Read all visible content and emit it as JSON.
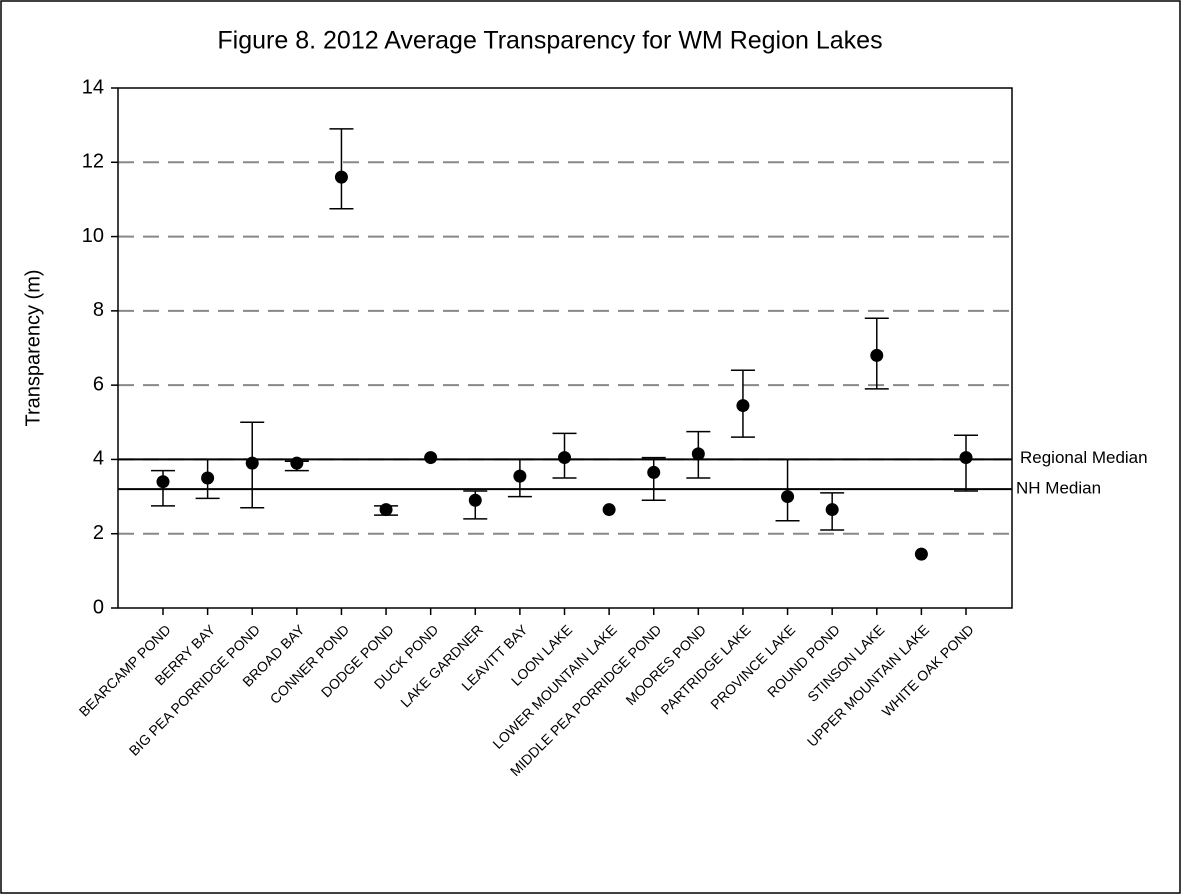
{
  "chart_data": {
    "type": "errorbar",
    "title": "Figure 8. 2012 Average Transparency for WM Region Lakes",
    "y_label": "Transparency (m)",
    "categories": [
      "BEARCAMP POND",
      "BERRY BAY",
      "BIG PEA PORRIDGE POND",
      "BROAD BAY",
      "CONNER POND",
      "DODGE POND",
      "DUCK POND",
      "LAKE GARDNER",
      "LEAVITT BAY",
      "LOON LAKE",
      "LOWER MOUNTAIN LAKE",
      "MIDDLE PEA PORRIDGE POND",
      "MOORES POND",
      "PARTRIDGE LAKE",
      "PROVINCE LAKE",
      "ROUND POND",
      "STINSON LAKE",
      "UPPER MOUNTAIN LAKE",
      "WHITE OAK POND"
    ],
    "values": [
      3.4,
      3.5,
      3.9,
      3.9,
      11.6,
      2.65,
      4.05,
      2.9,
      3.55,
      4.05,
      2.65,
      3.65,
      4.15,
      5.45,
      3.0,
      2.65,
      6.8,
      1.45,
      4.05
    ],
    "low": [
      2.75,
      2.95,
      2.7,
      3.7,
      10.75,
      2.5,
      null,
      2.4,
      3.0,
      3.5,
      null,
      2.9,
      3.5,
      4.6,
      2.35,
      2.1,
      5.9,
      null,
      3.15
    ],
    "high": [
      3.7,
      4.0,
      5.0,
      3.95,
      12.9,
      2.75,
      null,
      3.15,
      4.0,
      4.7,
      null,
      4.05,
      4.75,
      6.4,
      4.0,
      3.1,
      7.8,
      null,
      4.65
    ],
    "color": "#000000",
    "ylim": [
      0,
      14
    ],
    "yticks": [
      0,
      2,
      4,
      6,
      8,
      10,
      12,
      14
    ],
    "grid": true,
    "reference_lines": [
      {
        "label": "Regional Median",
        "value": 4
      },
      {
        "label": "NH Median",
        "value": 3.2
      }
    ]
  }
}
